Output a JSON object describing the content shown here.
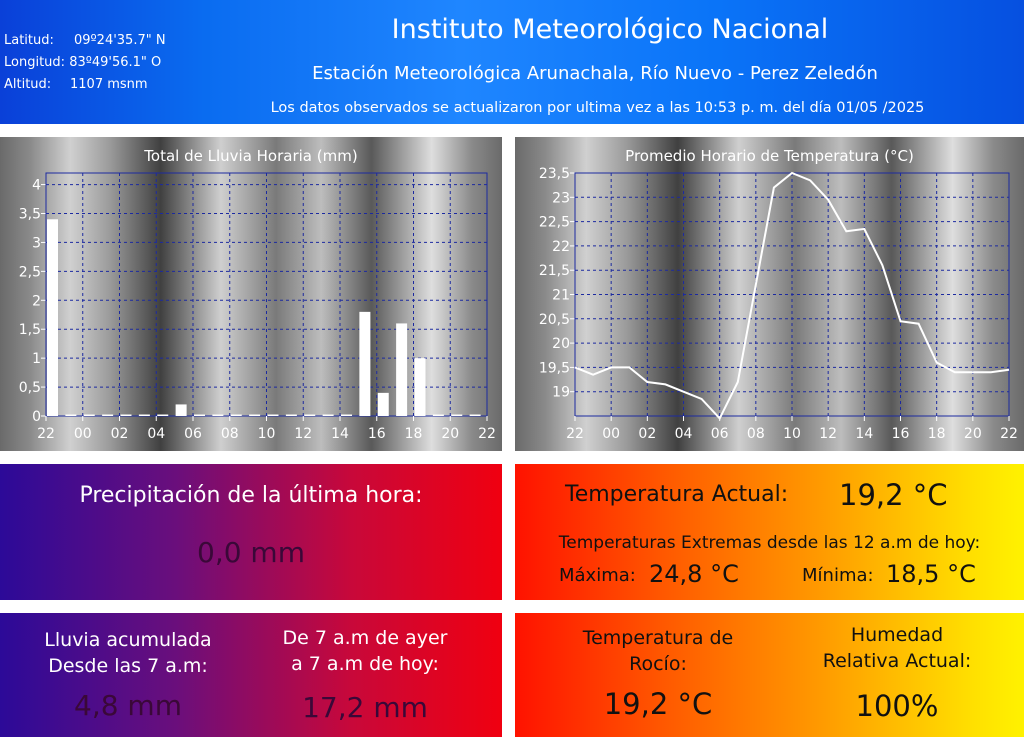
{
  "header": {
    "coords": [
      {
        "label": "Latitud:",
        "value": "09º24'35.7\" N"
      },
      {
        "label": "Longitud:",
        "value": "83º49'56.1\" O"
      },
      {
        "label": "Altitud:",
        "value": "1107 msnm"
      }
    ],
    "title": "Instituto Meteorológico Nacional",
    "subtitle": "Estación Meteorológica Arunachala, Río Nuevo - Perez Zeledón",
    "updated_prefix": "Los datos observados se actualizaron por ultima vez a las",
    "updated_time": "10:53 p. m.",
    "updated_mid": "del día",
    "updated_date": "01/05 /2025"
  },
  "chart_data": [
    {
      "type": "bar",
      "title": "Total de Lluvia Horaria (mm)",
      "categories": [
        "22",
        "23",
        "00",
        "01",
        "02",
        "03",
        "04",
        "05",
        "06",
        "07",
        "08",
        "09",
        "10",
        "11",
        "12",
        "13",
        "14",
        "15",
        "16",
        "17",
        "18",
        "19",
        "20",
        "21",
        "22"
      ],
      "xticks": [
        "22",
        "00",
        "02",
        "04",
        "06",
        "08",
        "10",
        "12",
        "14",
        "16",
        "18",
        "20",
        "22"
      ],
      "values": [
        3.4,
        0,
        0,
        0,
        0,
        0,
        0,
        0.2,
        0,
        0,
        0,
        0,
        0,
        0,
        0,
        0,
        0,
        1.8,
        0.4,
        1.6,
        1.0,
        0,
        0,
        0,
        0
      ],
      "ylim": [
        0,
        4.2
      ],
      "yticks": [
        "0",
        "0,5",
        "1",
        "1,5",
        "2",
        "2,5",
        "3",
        "3,5",
        "4"
      ],
      "grid": true
    },
    {
      "type": "line",
      "title": "Promedio Horario de Temperatura (°C)",
      "categories": [
        "22",
        "23",
        "00",
        "01",
        "02",
        "03",
        "04",
        "05",
        "06",
        "07",
        "08",
        "09",
        "10",
        "11",
        "12",
        "13",
        "14",
        "15",
        "16",
        "17",
        "18",
        "19",
        "20",
        "21",
        "22"
      ],
      "xticks": [
        "22",
        "00",
        "02",
        "04",
        "06",
        "08",
        "10",
        "12",
        "14",
        "16",
        "18",
        "20",
        "22"
      ],
      "values": [
        19.5,
        19.35,
        19.5,
        19.5,
        19.2,
        19.15,
        19.0,
        18.85,
        18.45,
        19.2,
        21.2,
        23.2,
        23.5,
        23.35,
        22.95,
        22.3,
        22.35,
        21.6,
        20.45,
        20.4,
        19.6,
        19.4,
        19.4,
        19.4,
        19.45
      ],
      "ylim": [
        18.5,
        23.5
      ],
      "yticks": [
        "19",
        "19,5",
        "20",
        "20,5",
        "21",
        "21,5",
        "22",
        "22,5",
        "23",
        "23,5"
      ],
      "grid": true
    }
  ],
  "precip": {
    "label": "Precipitación de la última hora:",
    "value": "0,0 mm"
  },
  "temp": {
    "actual_label": "Temperatura Actual:",
    "actual_value": "19,2 °C",
    "extremes_label": "Temperaturas Extremas desde las 12 a.m de hoy:",
    "max_label": "Máxima:",
    "max_value": "24,8 °C",
    "min_label": "Mínima:",
    "min_value": "18,5 °C"
  },
  "rain": {
    "acc_label_1": "Lluvia acumulada",
    "acc_label_2": "Desde las 7 a.m:",
    "acc_value": "4,8 mm",
    "day_label_1": "De 7 a.m de ayer",
    "day_label_2": "a 7 a.m de hoy:",
    "day_value": "17,2 mm"
  },
  "dew": {
    "label_1": "Temperatura de",
    "label_2": "Rocío:",
    "value": "19,2 °C"
  },
  "humidity": {
    "label_1": "Humedad",
    "label_2": "Relativa Actual:",
    "value": "100%"
  },
  "colors": {
    "header_blue": "#0a6cf0",
    "dark_value": "#5a0a3a"
  }
}
